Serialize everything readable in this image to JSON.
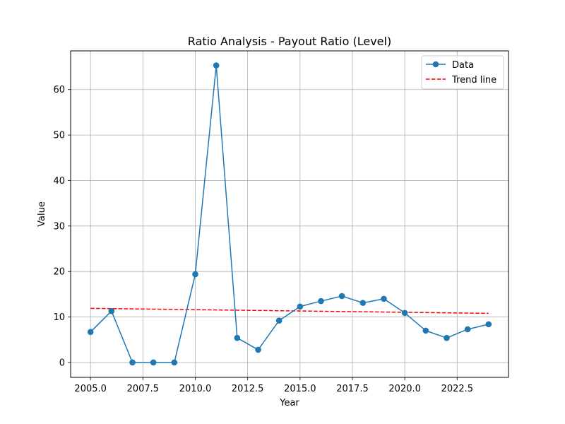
{
  "chart_data": {
    "type": "line",
    "title": "Ratio Analysis - Payout Ratio (Level)",
    "xlabel": "Year",
    "ylabel": "Value",
    "xlim": [
      2004.05,
      2024.95
    ],
    "ylim": [
      -3.27,
      68.5
    ],
    "xticks": [
      2005.0,
      2007.5,
      2010.0,
      2012.5,
      2015.0,
      2017.5,
      2020.0,
      2022.5
    ],
    "xtick_labels": [
      "2005.0",
      "2007.5",
      "2010.0",
      "2012.5",
      "2015.0",
      "2017.5",
      "2020.0",
      "2022.5"
    ],
    "yticks": [
      0,
      10,
      20,
      30,
      40,
      50,
      60
    ],
    "ytick_labels": [
      "0",
      "10",
      "20",
      "30",
      "40",
      "50",
      "60"
    ],
    "grid": true,
    "legend_position": "top-right",
    "series": [
      {
        "name": "Data",
        "color": "#1f77b4",
        "style": "solid-with-markers",
        "x": [
          2005,
          2006,
          2007,
          2008,
          2009,
          2010,
          2011,
          2012,
          2013,
          2014,
          2015,
          2016,
          2017,
          2018,
          2019,
          2020,
          2021,
          2022,
          2023,
          2024
        ],
        "y": [
          6.7,
          11.3,
          0.0,
          0.0,
          0.0,
          19.4,
          65.3,
          5.4,
          2.8,
          9.2,
          12.3,
          13.5,
          14.6,
          13.1,
          14.0,
          10.9,
          7.0,
          5.4,
          7.3,
          8.4
        ]
      },
      {
        "name": "Trend line",
        "color": "#ff0000",
        "style": "dashed",
        "x": [
          2005,
          2024
        ],
        "y": [
          11.9,
          10.8
        ]
      }
    ]
  }
}
